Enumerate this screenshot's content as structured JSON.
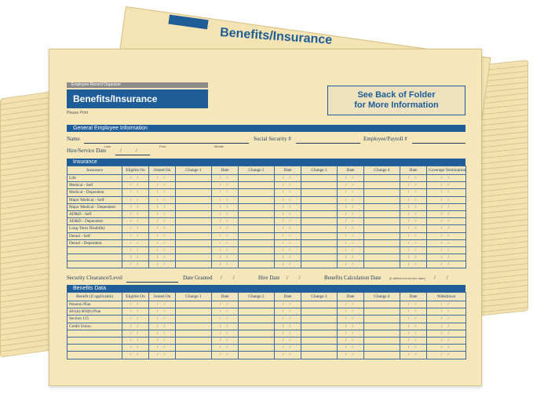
{
  "back_folder": {
    "title": "Benefits/Insurance",
    "tab_label": "Benefits/Insurance"
  },
  "folder": {
    "small_header": "Employee Record Organizer",
    "title": "Benefits/Insurance",
    "please_print": "Please Print",
    "see_back": "See Back of Folder\nfor More Information",
    "general_section": "General Employee Information",
    "name_label": "Name",
    "name_sub": [
      "Last",
      "First",
      "Middle"
    ],
    "ssn_label": "Social Security #",
    "employee_payroll_label": "Employee/Payroll #",
    "hire_label": "Hire/Service Date",
    "hire_value": "/ /",
    "insurance_section": "Insurance",
    "insurance_headers": [
      "Insurance",
      "Eligible On",
      "Joined On",
      "Change 1",
      "Date",
      "Change 2",
      "Date",
      "Change 3",
      "Date",
      "Change 4",
      "Date",
      "Coverage Termination"
    ],
    "insurance_rows": [
      "Life",
      "Medical - Self",
      "Medical - Dependent",
      "Major Medical - Self",
      "Major Medical - Dependent",
      "AD&D - Self",
      "AD&D - Dependent",
      "Long-Term Disability",
      "Dental - Self",
      "Dental - Dependent",
      "",
      "",
      ""
    ],
    "date_placeholder": "/ /",
    "security_label": "Security Clearance/Level",
    "date_granted_label": "Date Granted",
    "date_granted_value": "/ /",
    "hire_date_label": "Hire Date",
    "hire_date_value": "/ /",
    "benefits_calc_label": "Benefits Calculation Date",
    "benefits_calc_note": "(if different from hire date)",
    "benefits_calc_value": "/ /",
    "benefits_section": "Benefits Data",
    "benefits_headers": [
      "Benefit (if applicable)",
      "Eligible On",
      "Joined On",
      "Change 1",
      "Date",
      "Change 2",
      "Date",
      "Change 3",
      "Date",
      "Change 4",
      "Date",
      "Withdrawn"
    ],
    "benefits_rows": [
      "Pension Plan",
      "401(k)/403(b) Plan",
      "Section 125",
      "Credit Union",
      "",
      "",
      "",
      ""
    ]
  },
  "colors": {
    "folder": "#f6e7bb",
    "accent": "#1f5d98"
  }
}
